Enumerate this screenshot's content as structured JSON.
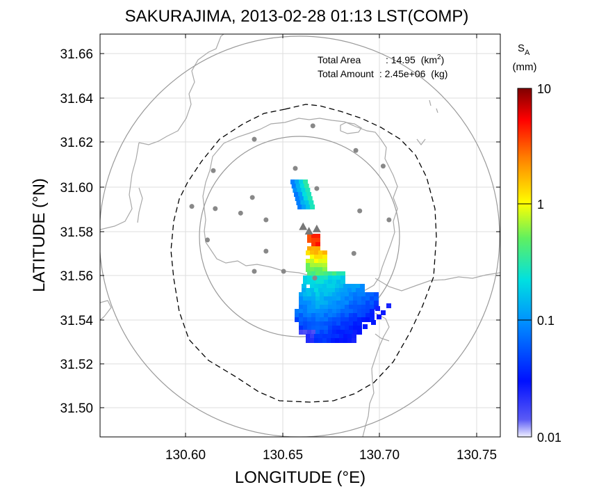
{
  "title": "SAKURAJIMA, 2013-02-28 01:13 LST(COMP)",
  "x_axis": {
    "label": "LONGITUDE (°E)",
    "range": [
      130.555,
      130.76
    ],
    "ticks": [
      "130.60",
      "130.65",
      "130.70",
      "130.75"
    ]
  },
  "y_axis": {
    "label": "LATITUDE (°N)",
    "range": [
      31.487,
      31.667
    ],
    "ticks": [
      "31.50",
      "31.52",
      "31.54",
      "31.56",
      "31.58",
      "31.60",
      "31.62",
      "31.64",
      "31.66"
    ]
  },
  "annotation": {
    "area_label": "Total Area",
    "area_sep": ": ",
    "area_value": "14.95",
    "area_unit_pre": "(km",
    "area_unit_sup": "2",
    "area_unit_post": ")",
    "amount_label": "Total Amount",
    "amount_sep": ": ",
    "amount_value": "2.45e+06",
    "amount_unit": "(kg)"
  },
  "colorbar": {
    "var_main": "S",
    "var_sub": "A",
    "unit": "(mm)",
    "scale": "log",
    "range": [
      0.01,
      10
    ],
    "tick_labels": [
      "10",
      "1",
      "0.1",
      "0.01"
    ]
  },
  "map": {
    "center": {
      "lon": 130.657,
      "lat": 31.577
    },
    "grid": true,
    "stations": [
      {
        "lon": 130.664,
        "lat": 31.626
      },
      {
        "lon": 130.634,
        "lat": 31.62
      },
      {
        "lon": 130.686,
        "lat": 31.615
      },
      {
        "lon": 130.613,
        "lat": 31.606
      },
      {
        "lon": 130.655,
        "lat": 31.607
      },
      {
        "lon": 130.666,
        "lat": 31.598
      },
      {
        "lon": 130.7,
        "lat": 31.608
      },
      {
        "lon": 130.633,
        "lat": 31.594
      },
      {
        "lon": 130.602,
        "lat": 31.59
      },
      {
        "lon": 130.614,
        "lat": 31.589
      },
      {
        "lon": 130.627,
        "lat": 31.587
      },
      {
        "lon": 130.64,
        "lat": 31.584
      },
      {
        "lon": 130.688,
        "lat": 31.588
      },
      {
        "lon": 130.703,
        "lat": 31.584
      },
      {
        "lon": 130.61,
        "lat": 31.575
      },
      {
        "lon": 130.64,
        "lat": 31.57
      },
      {
        "lon": 130.685,
        "lat": 31.569
      },
      {
        "lon": 130.634,
        "lat": 31.561
      },
      {
        "lon": 130.649,
        "lat": 31.561
      },
      {
        "lon": 130.665,
        "lat": 31.558
      }
    ],
    "vents": [
      {
        "lon": 130.659,
        "lat": 31.581
      },
      {
        "lon": 130.662,
        "lat": 31.579
      },
      {
        "lon": 130.666,
        "lat": 31.58
      }
    ]
  }
}
